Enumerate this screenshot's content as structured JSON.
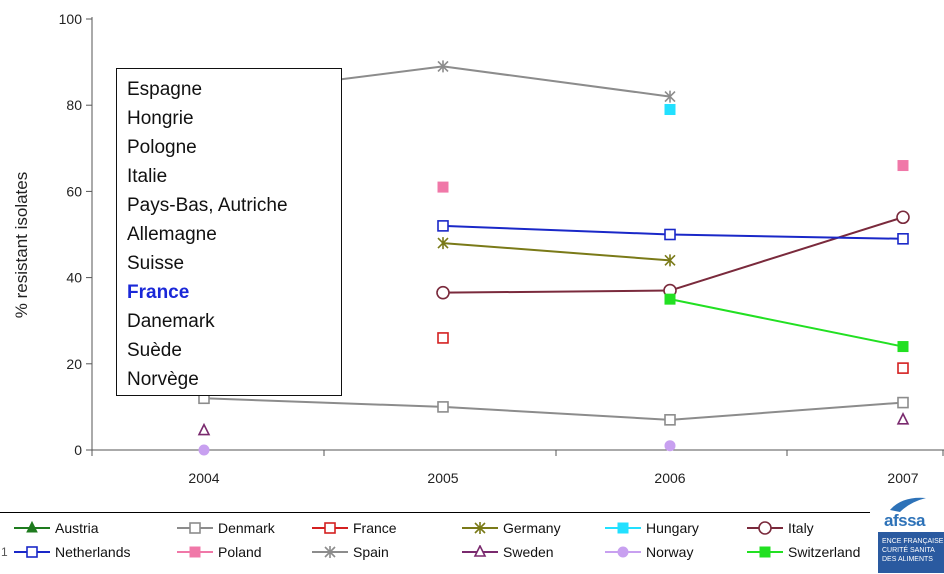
{
  "chart_data": {
    "type": "line",
    "title": "",
    "xlabel": "",
    "ylabel": "% resistant isolates",
    "x": [
      "2004",
      "2005",
      "2006",
      "2007"
    ],
    "ylim": [
      0,
      100
    ],
    "yticks": [
      0,
      20,
      40,
      60,
      80,
      100
    ],
    "grid": false,
    "series": [
      {
        "name": "Austria",
        "color": "#1e7b1e",
        "marker": "triangle-filled",
        "values": [
          null,
          null,
          null,
          null
        ]
      },
      {
        "name": "Denmark",
        "color": "#8c8c8c",
        "marker": "square-open",
        "values": [
          12,
          10,
          7,
          11
        ]
      },
      {
        "name": "France",
        "color": "#d42020",
        "marker": "square-open",
        "values": [
          null,
          26,
          null,
          19
        ]
      },
      {
        "name": "Germany",
        "color": "#7a7a18",
        "marker": "star",
        "values": [
          null,
          48,
          44,
          null
        ]
      },
      {
        "name": "Hungary",
        "color": "#22e0ff",
        "marker": "square-filled",
        "values": [
          null,
          null,
          79,
          null
        ]
      },
      {
        "name": "Italy",
        "color": "#7a2a3c",
        "marker": "circle-open",
        "values": [
          null,
          36.5,
          37,
          54
        ]
      },
      {
        "name": "Netherlands",
        "color": "#1a28c8",
        "marker": "square-open",
        "values": [
          null,
          52,
          50,
          49
        ]
      },
      {
        "name": "Poland",
        "color": "#f078a8",
        "marker": "square-filled",
        "values": [
          null,
          61,
          null,
          66
        ]
      },
      {
        "name": "Spain",
        "color": "#8c8c8c",
        "marker": "star",
        "values": [
          82,
          89,
          82,
          null
        ]
      },
      {
        "name": "Sweden",
        "color": "#7a2a6e",
        "marker": "triangle-open",
        "values": [
          4.5,
          null,
          null,
          7
        ]
      },
      {
        "name": "Norway",
        "color": "#c8a0f0",
        "marker": "circle-filled",
        "values": [
          0,
          null,
          1,
          null
        ]
      },
      {
        "name": "Switzerland",
        "color": "#22e022",
        "marker": "square-filled",
        "values": [
          null,
          null,
          35,
          24
        ]
      }
    ]
  },
  "country_list": [
    "Espagne",
    "Hongrie",
    "Pologne",
    "Italie",
    "Pays-Bas, Autriche",
    "Allemagne",
    "Suisse",
    "France",
    "Danemark",
    "Suède",
    "Norvège"
  ],
  "country_list_highlight": "France",
  "logo": {
    "name": "afssa",
    "band": [
      "ENCE FRANÇAISE",
      "CURITÉ SANITA",
      "DES ALIMENTS"
    ]
  },
  "page_number": "1"
}
